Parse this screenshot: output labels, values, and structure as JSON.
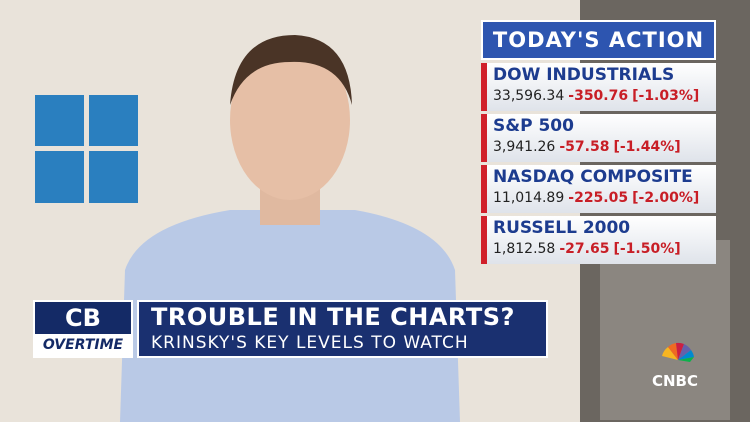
{
  "ticker": {
    "title": "TODAY'S ACTION",
    "items": [
      {
        "name": "DOW INDUSTRIALS",
        "price": "33,596.34",
        "change": "-350.76",
        "percent": "[-1.03%]"
      },
      {
        "name": "S&P 500",
        "price": "3,941.26",
        "change": "-57.58",
        "percent": "[-1.44%]"
      },
      {
        "name": "NASDAQ COMPOSITE",
        "price": "11,014.89",
        "change": "-225.05",
        "percent": "[-2.00%]"
      },
      {
        "name": "RUSSELL 2000",
        "price": "1,812.58",
        "change": "-27.65",
        "percent": "[-1.50%]"
      }
    ]
  },
  "lower_third": {
    "show_logo_top": "CB",
    "show_logo_bottom": "OVERTIME",
    "headline": "TROUBLE IN THE CHARTS?",
    "subheadline": "KRINSKY'S KEY LEVELS TO WATCH"
  },
  "network_logo": "CNBC"
}
